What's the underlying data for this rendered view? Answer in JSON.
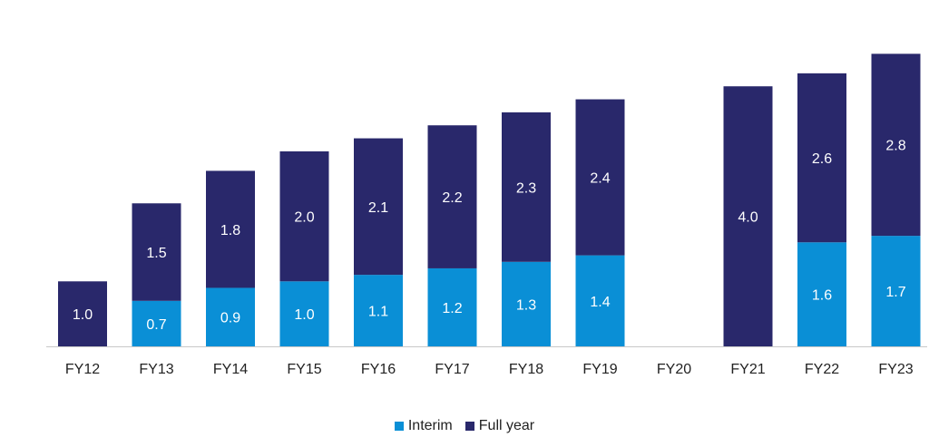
{
  "chart_data": {
    "type": "bar",
    "stacked": true,
    "categories": [
      "FY12",
      "FY13",
      "FY14",
      "FY15",
      "FY16",
      "FY17",
      "FY18",
      "FY19",
      "FY20",
      "FY21",
      "FY22",
      "FY23"
    ],
    "series": [
      {
        "name": "Interim",
        "color": "#0a8fd6",
        "values": [
          0,
          0.7,
          0.9,
          1.0,
          1.1,
          1.2,
          1.3,
          1.4,
          0,
          0,
          1.6,
          1.7
        ]
      },
      {
        "name": "Full year",
        "color": "#29286b",
        "values": [
          1.0,
          1.5,
          1.8,
          2.0,
          2.1,
          2.2,
          2.3,
          2.4,
          0,
          4.0,
          2.6,
          2.8
        ]
      }
    ],
    "data_labels": {
      "Interim": [
        "",
        "0.7",
        "0.9",
        "1.0",
        "1.1",
        "1.2",
        "1.3",
        "1.4",
        "",
        "",
        "1.6",
        "1.7"
      ],
      "Full year": [
        "1.0",
        "1.5",
        "1.8",
        "2.0",
        "2.1",
        "2.2",
        "2.3",
        "2.4",
        "",
        "4.0",
        "2.6",
        "2.8"
      ]
    },
    "ylim": [
      0,
      4.6
    ],
    "legend_position": "bottom-center",
    "grid": false
  }
}
